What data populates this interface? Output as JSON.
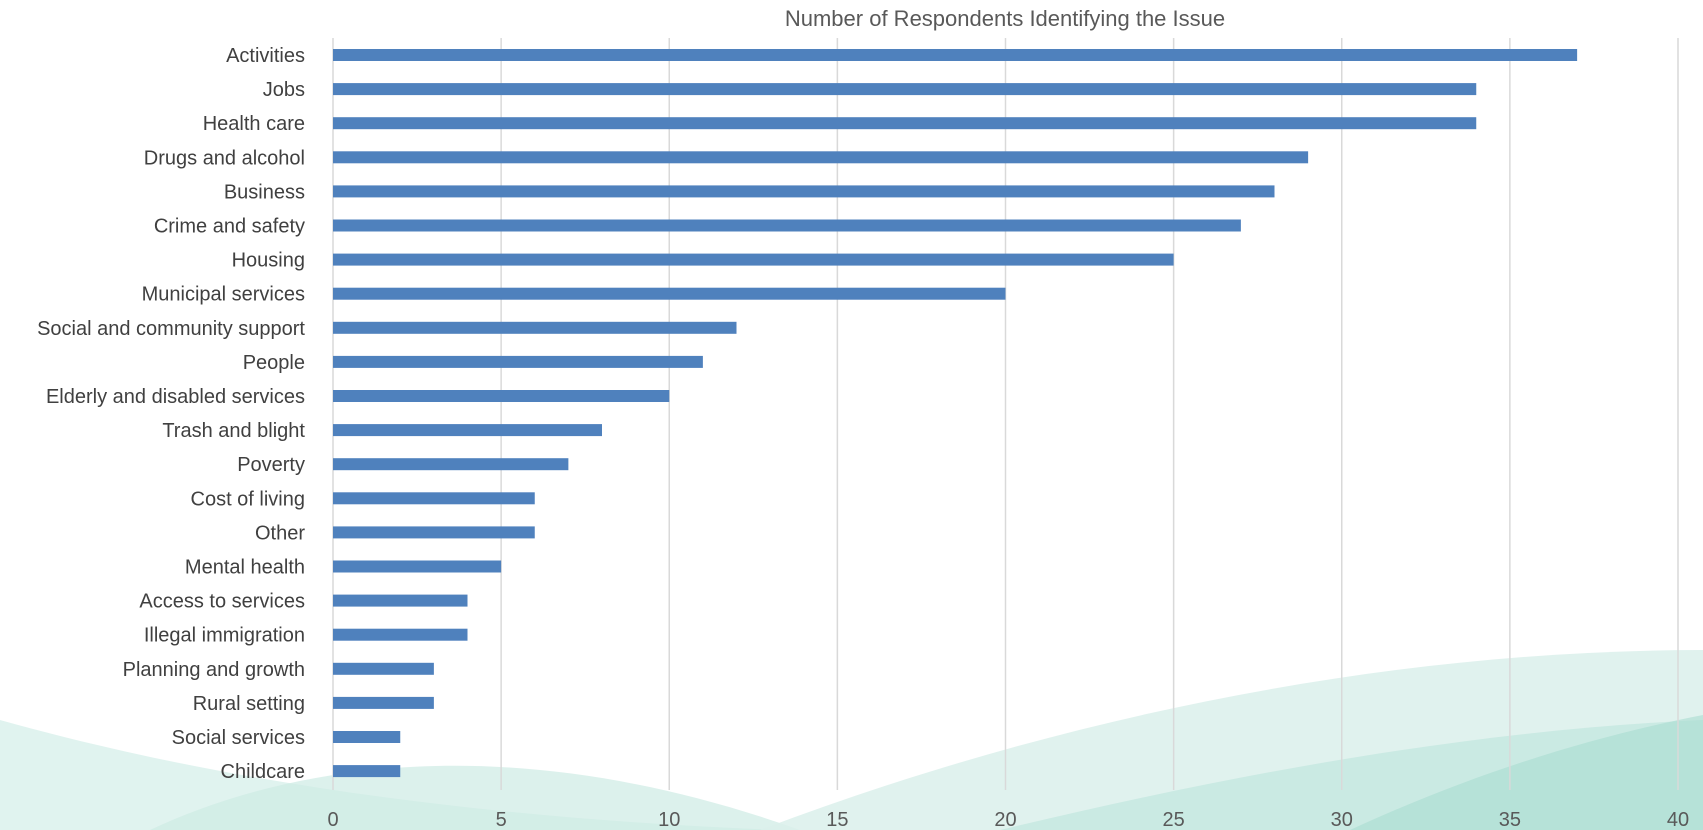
{
  "chart_data": {
    "type": "bar",
    "orientation": "horizontal",
    "title": "Number of Respondents Identifying the Issue",
    "xlabel": "",
    "ylabel": "",
    "xlim": [
      0,
      40
    ],
    "x_ticks": [
      0,
      5,
      10,
      15,
      20,
      25,
      30,
      35,
      40
    ],
    "grid": "vertical",
    "legend": "none",
    "bar_color": "#4F81BD",
    "grid_color": "#D9D9D9",
    "categories": [
      "Activities",
      "Jobs",
      "Health care",
      "Drugs and alcohol",
      "Business",
      "Crime and safety",
      "Housing",
      "Municipal services",
      "Social and community support",
      "People",
      "Elderly and disabled services",
      "Trash and blight",
      "Poverty",
      "Cost of living",
      "Other",
      "Mental health",
      "Access to services",
      "Illegal immigration",
      "Planning and growth",
      "Rural setting",
      "Social services",
      "Childcare"
    ],
    "values": [
      37,
      34,
      34,
      29,
      28,
      27,
      25,
      20,
      12,
      11,
      10,
      8,
      7,
      6,
      6,
      5,
      4,
      4,
      3,
      3,
      2,
      2
    ]
  }
}
